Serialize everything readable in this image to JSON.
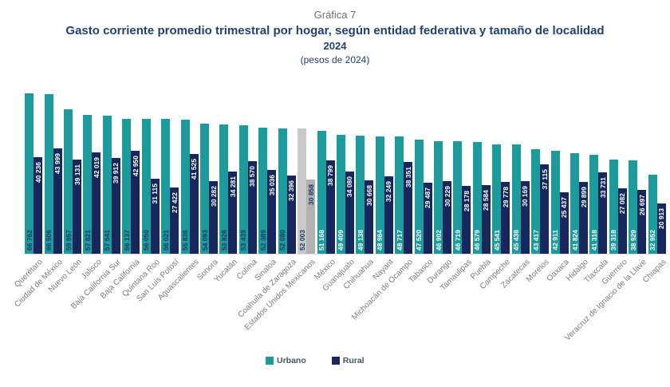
{
  "header": {
    "pretitle": "Gráfica 7",
    "title": "Gasto corriente promedio trimestral por hogar, según entidad federativa y tamaño de localidad",
    "year": "2024",
    "units": "(pesos de 2024)"
  },
  "legend": {
    "urban": "Urbano",
    "rural": "Rural"
  },
  "colors": {
    "urban": "#1B9C9C",
    "rural": "#17265D",
    "national_urban": "#C9C9C9",
    "national_rural": "#B1B1B1",
    "title_navy": "#1F4173",
    "pretitle_gray": "#6E6E6E",
    "axis_label_gray": "#7A7A7A",
    "value_label_dark": "#1F3864",
    "value_label_light": "#FFFFFF",
    "baseline": "#F2DBDB",
    "legend_text": "#44546A"
  },
  "chart_data": {
    "type": "bar",
    "title": "Gasto corriente promedio trimestral por hogar, según entidad federativa y tamaño de localidad",
    "subtitle": "2024 (pesos de 2024)",
    "xlabel": "",
    "ylabel": "",
    "ylim": [
      0,
      67000
    ],
    "grid": false,
    "legend_position": "bottom",
    "value_labels": "inside-rotated-90",
    "highlight_category": "Estados Unidos Mexicanos",
    "urban_label_dark_count": 15,
    "categories": [
      "Querétaro",
      "Ciudad de México",
      "Nuevo León",
      "Jalisco",
      "Baja California Sur",
      "Baja California",
      "Quintana Roo",
      "San Luis Potosí",
      "Aguascalientes",
      "Sonora",
      "Yucatán",
      "Colima",
      "Sinaloa",
      "Coahuila de Zaragoza",
      "Estados Unidos Mexicanos",
      "México",
      "Guanajuato",
      "Chihuahua",
      "Nayarit",
      "Michoacán de Ocampo",
      "Tabasco",
      "Durango",
      "Tamaulipas",
      "Puebla",
      "Campeche",
      "Zacatecas",
      "Morelos",
      "Oaxaca",
      "Hidalgo",
      "Tlaxcala",
      "Guerrero",
      "Veracruz de Ignacio de la Llave",
      "Chiapas"
    ],
    "series": [
      {
        "name": "Urbano",
        "values": [
          66762,
          66506,
          59957,
          57821,
          57541,
          56137,
          56050,
          56021,
          55836,
          54093,
          53828,
          53439,
          52389,
          52080,
          52003,
          51168,
          49409,
          49138,
          48964,
          48717,
          47520,
          46902,
          46719,
          46579,
          45541,
          45438,
          43417,
          42911,
          41824,
          41318,
          39318,
          38929,
          32952
        ]
      },
      {
        "name": "Rural",
        "values": [
          40236,
          43999,
          39131,
          42019,
          39912,
          42950,
          31115,
          27422,
          41525,
          30282,
          34281,
          38570,
          35036,
          32396,
          30858,
          38799,
          34080,
          30668,
          32249,
          38351,
          29487,
          30229,
          28178,
          28584,
          29778,
          30169,
          37115,
          25437,
          29899,
          33731,
          27082,
          26697,
          20913
        ]
      }
    ]
  }
}
